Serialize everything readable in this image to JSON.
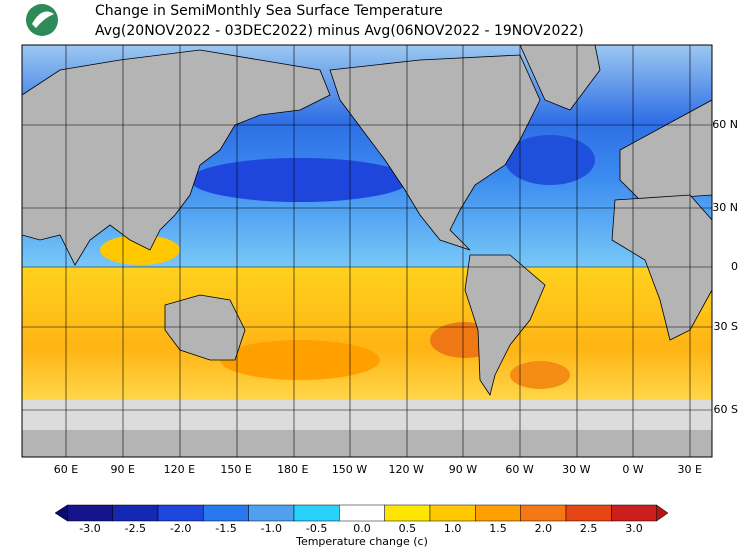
{
  "header": {
    "title": "Change in SemiMonthly Sea Surface Temperature",
    "subtitle": "Avg(20NOV2022 - 03DEC2022) minus Avg(06NOV2022 - 19NOV2022)"
  },
  "map": {
    "lat_labels": [
      "60 N",
      "30 N",
      "0",
      "30 S",
      "60 S"
    ],
    "lon_labels": [
      "60 E",
      "90 E",
      "120 E",
      "150 E",
      "180 E",
      "150 W",
      "120 W",
      "90 W",
      "60 W",
      "30 W",
      "0 W",
      "30 E"
    ]
  },
  "colorbar": {
    "ticks": [
      {
        "value": -3,
        "label": "-3.0"
      },
      {
        "value": -2.5,
        "label": "-2.5"
      },
      {
        "value": -2,
        "label": "-2.0"
      },
      {
        "value": -1.5,
        "label": "-1.5"
      },
      {
        "value": -1,
        "label": "-1.0"
      },
      {
        "value": -0.5,
        "label": "-0.5"
      },
      {
        "value": 0,
        "label": "0.0"
      },
      {
        "value": 0.5,
        "label": "0.5"
      },
      {
        "value": 1,
        "label": "1.0"
      },
      {
        "value": 1.5,
        "label": "1.5"
      },
      {
        "value": 2,
        "label": "2.0"
      },
      {
        "value": 2.5,
        "label": "2.5"
      },
      {
        "value": 3,
        "label": "3.0"
      }
    ],
    "colors": [
      "#0c0c70",
      "#14148c",
      "#1428b4",
      "#1e46dc",
      "#2878f0",
      "#50a0f0",
      "#28d2fa",
      "#ffffff",
      "#ffe600",
      "#ffc800",
      "#ffa000",
      "#f57814",
      "#e64614",
      "#cd1e1e",
      "#b41414"
    ],
    "label": "Temperature change  (c)"
  }
}
